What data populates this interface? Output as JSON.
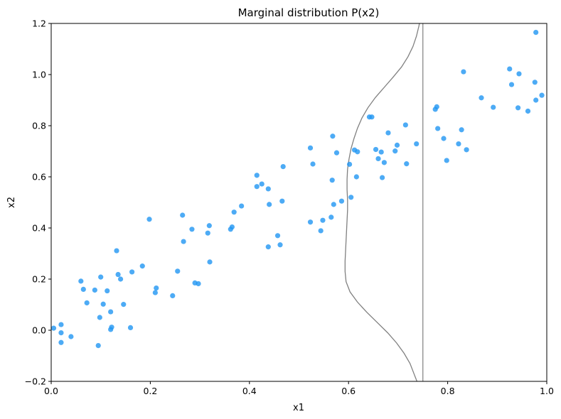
{
  "chart_data": {
    "type": "scatter",
    "title": "Marginal distribution P(x2)",
    "xlabel": "x1",
    "ylabel": "x2",
    "xlim": [
      0.0,
      1.0
    ],
    "ylim": [
      -0.2,
      1.2
    ],
    "xticks": [
      0.0,
      0.2,
      0.4,
      0.6,
      0.8,
      1.0
    ],
    "yticks": [
      -0.2,
      0.0,
      0.2,
      0.4,
      0.6,
      0.8,
      1.0,
      1.2
    ],
    "xtick_labels": [
      "0.0",
      "0.2",
      "0.4",
      "0.6",
      "0.8",
      "1.0"
    ],
    "ytick_labels": [
      "−0.2",
      "0.0",
      "0.2",
      "0.4",
      "0.6",
      "0.8",
      "1.0",
      "1.2"
    ],
    "grid": false,
    "point_color": "#2196f3",
    "marginal_line_color": "#808080",
    "vertical_line_x": 0.75,
    "points": [
      [
        0.005,
        0.008
      ],
      [
        0.02,
        0.022
      ],
      [
        0.02,
        -0.01
      ],
      [
        0.02,
        -0.048
      ],
      [
        0.04,
        -0.025
      ],
      [
        0.06,
        0.192
      ],
      [
        0.065,
        0.16
      ],
      [
        0.072,
        0.107
      ],
      [
        0.088,
        0.157
      ],
      [
        0.095,
        -0.06
      ],
      [
        0.098,
        0.05
      ],
      [
        0.1,
        0.208
      ],
      [
        0.105,
        0.102
      ],
      [
        0.113,
        0.154
      ],
      [
        0.12,
        0.072
      ],
      [
        0.12,
        0.003
      ],
      [
        0.122,
        0.012
      ],
      [
        0.132,
        0.311
      ],
      [
        0.135,
        0.218
      ],
      [
        0.14,
        0.2
      ],
      [
        0.146,
        0.101
      ],
      [
        0.16,
        0.01
      ],
      [
        0.163,
        0.228
      ],
      [
        0.184,
        0.251
      ],
      [
        0.198,
        0.434
      ],
      [
        0.21,
        0.147
      ],
      [
        0.212,
        0.165
      ],
      [
        0.245,
        0.135
      ],
      [
        0.255,
        0.231
      ],
      [
        0.265,
        0.45
      ],
      [
        0.267,
        0.347
      ],
      [
        0.284,
        0.395
      ],
      [
        0.29,
        0.185
      ],
      [
        0.297,
        0.182
      ],
      [
        0.316,
        0.38
      ],
      [
        0.319,
        0.409
      ],
      [
        0.32,
        0.267
      ],
      [
        0.362,
        0.395
      ],
      [
        0.365,
        0.404
      ],
      [
        0.369,
        0.462
      ],
      [
        0.384,
        0.486
      ],
      [
        0.415,
        0.606
      ],
      [
        0.415,
        0.562
      ],
      [
        0.425,
        0.572
      ],
      [
        0.438,
        0.553
      ],
      [
        0.44,
        0.492
      ],
      [
        0.438,
        0.326
      ],
      [
        0.457,
        0.37
      ],
      [
        0.462,
        0.334
      ],
      [
        0.466,
        0.505
      ],
      [
        0.468,
        0.64
      ],
      [
        0.523,
        0.713
      ],
      [
        0.523,
        0.423
      ],
      [
        0.528,
        0.65
      ],
      [
        0.544,
        0.389
      ],
      [
        0.548,
        0.43
      ],
      [
        0.565,
        0.442
      ],
      [
        0.567,
        0.587
      ],
      [
        0.568,
        0.759
      ],
      [
        0.57,
        0.492
      ],
      [
        0.576,
        0.694
      ],
      [
        0.586,
        0.505
      ],
      [
        0.602,
        0.649
      ],
      [
        0.605,
        0.52
      ],
      [
        0.612,
        0.705
      ],
      [
        0.616,
        0.6
      ],
      [
        0.618,
        0.698
      ],
      [
        0.642,
        0.834
      ],
      [
        0.647,
        0.834
      ],
      [
        0.655,
        0.707
      ],
      [
        0.66,
        0.671
      ],
      [
        0.666,
        0.697
      ],
      [
        0.668,
        0.597
      ],
      [
        0.672,
        0.656
      ],
      [
        0.68,
        0.772
      ],
      [
        0.694,
        0.701
      ],
      [
        0.698,
        0.724
      ],
      [
        0.715,
        0.803
      ],
      [
        0.717,
        0.651
      ],
      [
        0.737,
        0.729
      ],
      [
        0.775,
        0.864
      ],
      [
        0.778,
        0.874
      ],
      [
        0.78,
        0.789
      ],
      [
        0.792,
        0.75
      ],
      [
        0.798,
        0.664
      ],
      [
        0.822,
        0.729
      ],
      [
        0.828,
        0.784
      ],
      [
        0.832,
        1.011
      ],
      [
        0.838,
        0.706
      ],
      [
        0.868,
        0.909
      ],
      [
        0.892,
        0.872
      ],
      [
        0.925,
        1.022
      ],
      [
        0.929,
        0.961
      ],
      [
        0.942,
        0.87
      ],
      [
        0.944,
        1.003
      ],
      [
        0.962,
        0.857
      ],
      [
        0.976,
        0.97
      ],
      [
        0.978,
        0.9
      ],
      [
        0.978,
        1.165
      ],
      [
        0.99,
        0.919
      ]
    ],
    "marginal_curve": [
      [
        0.738,
        -0.2
      ],
      [
        0.732,
        -0.17
      ],
      [
        0.724,
        -0.13
      ],
      [
        0.712,
        -0.09
      ],
      [
        0.697,
        -0.05
      ],
      [
        0.679,
        -0.01
      ],
      [
        0.658,
        0.03
      ],
      [
        0.637,
        0.07
      ],
      [
        0.618,
        0.11
      ],
      [
        0.603,
        0.15
      ],
      [
        0.595,
        0.19
      ],
      [
        0.593,
        0.23
      ],
      [
        0.593,
        0.27
      ],
      [
        0.594,
        0.31
      ],
      [
        0.595,
        0.35
      ],
      [
        0.596,
        0.39
      ],
      [
        0.597,
        0.43
      ],
      [
        0.598,
        0.47
      ],
      [
        0.598,
        0.51
      ],
      [
        0.597,
        0.55
      ],
      [
        0.597,
        0.59
      ],
      [
        0.598,
        0.63
      ],
      [
        0.601,
        0.67
      ],
      [
        0.605,
        0.71
      ],
      [
        0.611,
        0.75
      ],
      [
        0.618,
        0.79
      ],
      [
        0.627,
        0.83
      ],
      [
        0.639,
        0.87
      ],
      [
        0.654,
        0.91
      ],
      [
        0.672,
        0.95
      ],
      [
        0.69,
        0.99
      ],
      [
        0.707,
        1.03
      ],
      [
        0.72,
        1.07
      ],
      [
        0.73,
        1.11
      ],
      [
        0.737,
        1.15
      ],
      [
        0.742,
        1.19
      ],
      [
        0.743,
        1.2
      ]
    ]
  }
}
